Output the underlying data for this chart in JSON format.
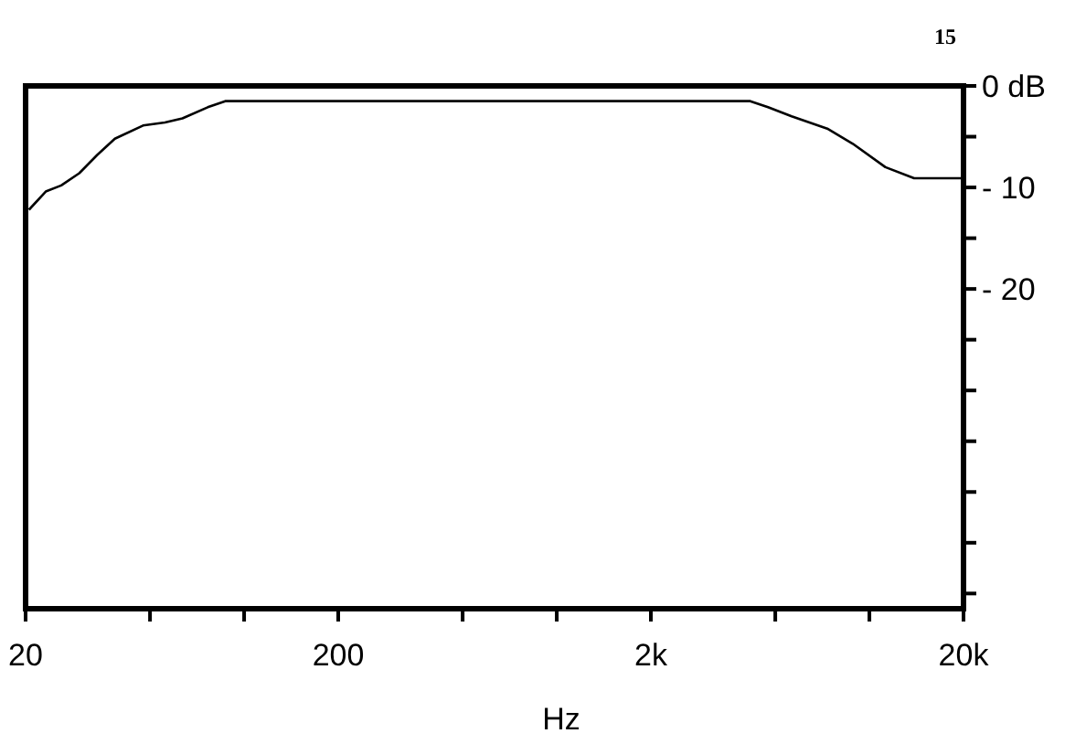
{
  "chart_data": {
    "type": "line",
    "xlabel": "Hz",
    "log": "x",
    "grid": false,
    "marker": "none",
    "line_style": "solid",
    "annotations": [
      "15"
    ],
    "xlim": [
      20,
      20000
    ],
    "xticks": [
      20,
      {
        "value": 50,
        "label": null
      },
      {
        "value": 100,
        "label": null
      },
      200,
      {
        "value": 500,
        "label": null
      },
      {
        "value": 1000,
        "label": null
      },
      {
        "value": 2000,
        "label": "2k"
      },
      {
        "value": 5000,
        "label": null
      },
      {
        "value": 10000,
        "label": null
      },
      {
        "value": 20000,
        "label": "20k"
      }
    ],
    "ylim": [
      -51.5,
      0
    ],
    "yticks": [
      {
        "value": 0,
        "label": "0 dB"
      },
      {
        "value": -5,
        "label": null
      },
      {
        "value": -10,
        "label": "- 10"
      },
      {
        "value": -15,
        "label": null
      },
      {
        "value": -20,
        "label": "- 20"
      },
      {
        "value": -25,
        "label": null
      },
      {
        "value": -30,
        "label": null
      },
      {
        "value": -35,
        "label": null
      },
      {
        "value": -40,
        "label": null
      },
      {
        "value": -45,
        "label": null
      },
      {
        "value": -50,
        "label": null
      }
    ],
    "series": [
      {
        "color": "#000000",
        "x": [
          20.5,
          23.2,
          26,
          29.7,
          33.9,
          38.6,
          47.5,
          55.8,
          63.5,
          76.5,
          87,
          4160,
          4740,
          5640,
          7330,
          8850,
          11250,
          13900,
          18300,
          20000
        ],
        "values": [
          -12.2,
          -10.4,
          -9.8,
          -8.6,
          -6.8,
          -5.2,
          -3.9,
          -3.6,
          -3.2,
          -2.1,
          -1.5,
          -1.5,
          -2.1,
          -3,
          -4.2,
          -5.7,
          -8,
          -9.1,
          -9.1,
          -9.1
        ]
      }
    ]
  }
}
